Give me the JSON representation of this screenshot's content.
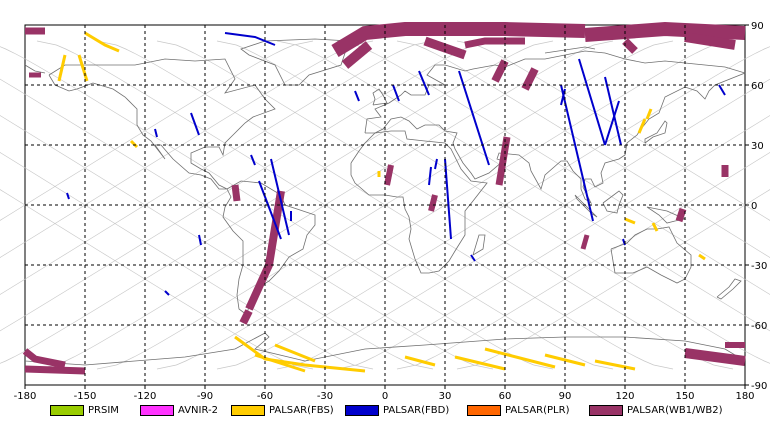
{
  "map": {
    "lon_range": [
      -180,
      180
    ],
    "lat_range": [
      -90,
      90
    ],
    "x_ticks": [
      "-180",
      "-150",
      "-120",
      "-90",
      "-60",
      "-30",
      "0",
      "30",
      "60",
      "90",
      "120",
      "150",
      "180"
    ],
    "y_ticks": [
      "90",
      "60",
      "30",
      "0",
      "-30",
      "-60",
      "-90"
    ],
    "x_tick_values": [
      -180,
      -150,
      -120,
      -90,
      -60,
      -30,
      0,
      30,
      60,
      90,
      120,
      150,
      180
    ],
    "y_tick_values": [
      90,
      60,
      30,
      0,
      -30,
      -60,
      -90
    ],
    "grid": "dashed",
    "background": "#ffffff"
  },
  "legend": [
    {
      "label": "PRSIM",
      "color": "#99cc00"
    },
    {
      "label": "AVNIR-2",
      "color": "#ff33ff"
    },
    {
      "label": "PALSAR(FBS)",
      "color": "#ffcc00"
    },
    {
      "label": "PALSAR(FBD)",
      "color": "#0000cc"
    },
    {
      "label": "PALSAR(PLR)",
      "color": "#ff6600"
    },
    {
      "label": "PALSAR(WB1/WB2)",
      "color": "#993366"
    }
  ],
  "colors": {
    "orbit": "#c8c8c8",
    "coast": "#707070",
    "fbs": "#ffcc00",
    "fbd": "#0000cc",
    "wb": "#993366"
  }
}
